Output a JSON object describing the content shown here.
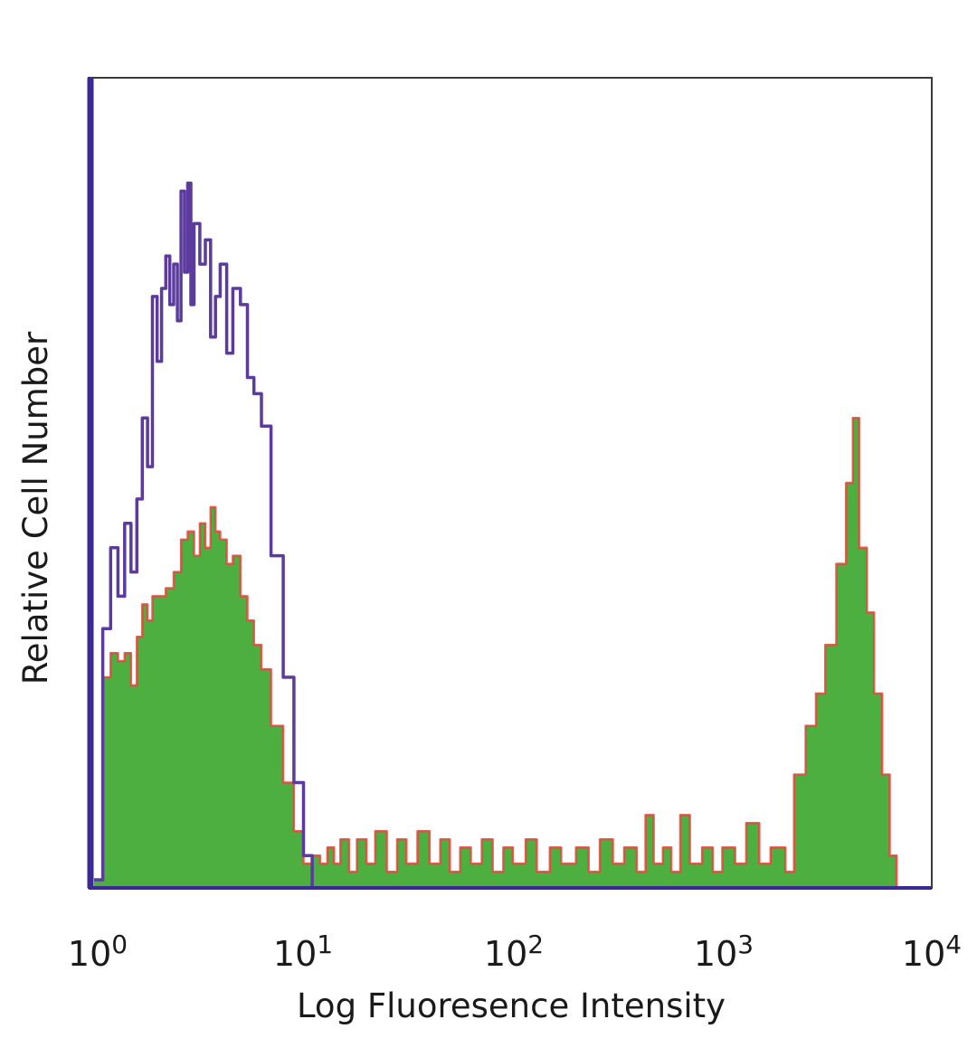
{
  "chart_data": {
    "type": "area",
    "xlabel": "Log Fluoresence Intensity",
    "ylabel": "Relative Cell Number",
    "x_scale": "log",
    "xlim": [
      1,
      10000
    ],
    "ylim": [
      0,
      100
    ],
    "x_ticks": [
      {
        "base": "10",
        "exp": "0",
        "value": 1
      },
      {
        "base": "10",
        "exp": "1",
        "value": 10
      },
      {
        "base": "10",
        "exp": "2",
        "value": 100
      },
      {
        "base": "10",
        "exp": "3",
        "value": 1000
      },
      {
        "base": "10",
        "exp": "4",
        "value": 10000
      }
    ],
    "grid": false,
    "legend": "none",
    "series": [
      {
        "style": "outline",
        "color": "#5b3b9e",
        "x": [
          1.0,
          1.1,
          1.2,
          1.3,
          1.4,
          1.5,
          1.6,
          1.7,
          1.8,
          1.9,
          2.0,
          2.1,
          2.2,
          2.3,
          2.4,
          2.5,
          2.6,
          2.7,
          2.8,
          2.9,
          3.0,
          3.2,
          3.4,
          3.6,
          3.8,
          4.0,
          4.3,
          4.6,
          5.0,
          5.4,
          5.8,
          6.3,
          7.0,
          8.0,
          9.0,
          10.0,
          11.0,
          12.0,
          15.0
        ],
        "y": [
          1,
          32,
          42,
          36,
          45,
          39,
          48,
          58,
          52,
          73,
          65,
          74,
          78,
          72,
          77,
          70,
          86,
          76,
          87,
          72,
          82,
          77,
          80,
          68,
          73,
          77,
          66,
          74,
          72,
          63,
          61,
          57,
          41,
          26,
          13,
          4,
          0,
          0,
          0
        ]
      },
      {
        "style": "filled",
        "color": "#4caf3f",
        "edge_color": "#e8433a",
        "x": [
          1.0,
          1.1,
          1.2,
          1.3,
          1.4,
          1.5,
          1.6,
          1.7,
          1.8,
          1.9,
          2.0,
          2.2,
          2.4,
          2.6,
          2.8,
          3.0,
          3.2,
          3.4,
          3.6,
          3.8,
          4.0,
          4.3,
          4.6,
          5.0,
          5.4,
          5.8,
          6.3,
          7.0,
          8.0,
          9.0,
          10.0,
          11.0,
          12.0,
          13.0,
          14.0,
          15.0,
          16.5,
          18.0,
          20.0,
          22.0,
          25.0,
          28.0,
          31.0,
          35.0,
          40.0,
          45.0,
          50.0,
          56.0,
          63.0,
          71.0,
          80.0,
          90.0,
          100.0,
          115.0,
          130.0,
          150.0,
          170.0,
          200.0,
          230.0,
          260.0,
          300.0,
          340.0,
          390.0,
          430.0,
          470.0,
          520.0,
          570.0,
          630.0,
          700.0,
          800.0,
          900.0,
          1000.0,
          1150.0,
          1300.0,
          1500.0,
          1700.0,
          2000.0,
          2200.0,
          2500.0,
          2800.0,
          3100.0,
          3500.0,
          3900.0,
          4200.0,
          4500.0,
          4900.0,
          5300.0,
          5800.0,
          6300.0,
          6800.0
        ],
        "y": [
          1,
          26,
          29,
          28,
          29,
          25,
          31,
          35,
          33,
          36,
          36,
          37,
          39,
          43,
          44,
          41,
          45,
          42,
          47,
          44,
          43,
          40,
          41,
          36,
          33,
          30,
          27,
          20,
          13,
          7,
          3,
          4,
          3,
          5,
          3,
          6,
          2,
          6,
          3,
          7,
          2,
          6,
          3,
          7,
          3,
          6,
          2,
          5,
          3,
          6,
          2,
          5,
          3,
          6,
          2,
          5,
          3,
          5,
          2,
          6,
          3,
          5,
          2,
          9,
          3,
          5,
          2,
          9,
          3,
          5,
          2,
          5,
          3,
          8,
          3,
          5,
          2,
          14,
          20,
          24,
          30,
          40,
          50,
          58,
          42,
          34,
          24,
          14,
          4,
          0
        ]
      }
    ]
  }
}
